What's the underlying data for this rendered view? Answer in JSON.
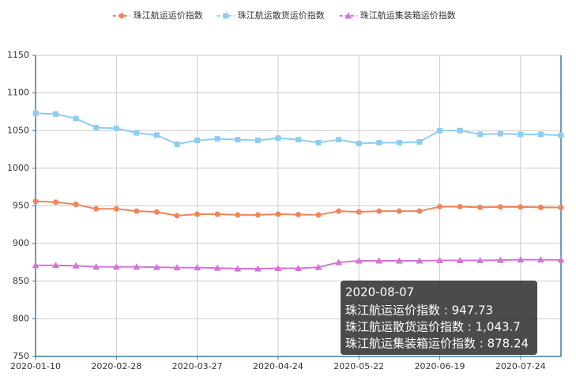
{
  "chart_data": {
    "type": "line",
    "categories": [
      "2020-01-10",
      null,
      null,
      null,
      "2020-02-28",
      null,
      null,
      null,
      "2020-03-27",
      null,
      null,
      null,
      "2020-04-24",
      null,
      null,
      null,
      "2020-05-22",
      null,
      null,
      null,
      "2020-06-19",
      null,
      null,
      null,
      "2020-07-24",
      null,
      null
    ],
    "series": [
      {
        "name": "珠江航运运价指数",
        "color": "#f0845a",
        "marker": "circle",
        "values": [
          956,
          955,
          952,
          946,
          946,
          943,
          942,
          937,
          939,
          939,
          938,
          938,
          939,
          938.5,
          938,
          943,
          942,
          943,
          943,
          943,
          949,
          949,
          948,
          948.5,
          948.5,
          948,
          947.73
        ]
      },
      {
        "name": "珠江航运散货运价指数",
        "color": "#8ecdf2",
        "marker": "square",
        "values": [
          1073,
          1072,
          1066,
          1054,
          1053,
          1047,
          1044,
          1032,
          1037,
          1039,
          1038,
          1037,
          1040,
          1038,
          1034,
          1038,
          1033,
          1034,
          1034,
          1035,
          1050,
          1050,
          1045,
          1046,
          1045,
          1045,
          1043.7
        ]
      },
      {
        "name": "珠江航运集装箱运价指数",
        "color": "#d274d6",
        "marker": "triangle",
        "values": [
          871,
          871,
          870.5,
          869,
          869,
          869,
          868.5,
          868,
          868,
          867.5,
          866.5,
          866.5,
          867,
          867,
          868.5,
          875,
          877,
          877,
          877,
          877,
          877.5,
          877.5,
          877.5,
          878,
          878.5,
          878.5,
          878.24
        ]
      }
    ],
    "ylim": [
      750,
      1150
    ],
    "yticks": [
      750,
      800,
      850,
      900,
      950,
      1000,
      1050,
      1100,
      1150
    ],
    "grid": true,
    "legend": "top",
    "tooltip": {
      "title": "2020-08-07",
      "lines": [
        "珠江航运运价指数 : 947.73",
        "珠江航运散货运价指数 : 1,043.7",
        "珠江航运集装箱运价指数 : 878.24"
      ]
    }
  }
}
